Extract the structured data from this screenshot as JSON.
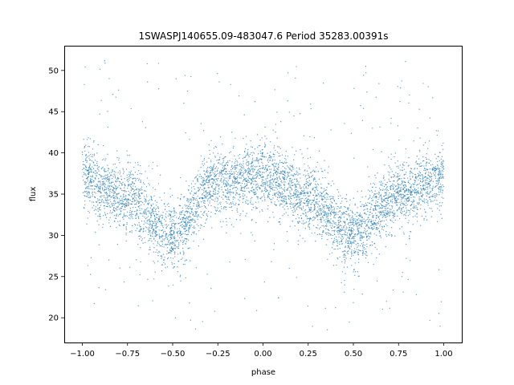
{
  "chart_data": {
    "type": "scatter",
    "title": "1SWASPJ140655.09-483047.6 Period 35283.00391s",
    "xlabel": "phase",
    "ylabel": "flux",
    "xlim": [
      -1.1,
      1.1
    ],
    "ylim": [
      17,
      53
    ],
    "xticks": [
      -1.0,
      -0.75,
      -0.5,
      -0.25,
      0.0,
      0.25,
      0.5,
      0.75,
      1.0
    ],
    "xtick_labels": [
      "−1.00",
      "−0.75",
      "−0.50",
      "−0.25",
      "0.00",
      "0.25",
      "0.50",
      "0.75",
      "1.00"
    ],
    "yticks": [
      20,
      25,
      30,
      35,
      40,
      45,
      50
    ],
    "ytick_labels": [
      "20",
      "25",
      "30",
      "35",
      "40",
      "45",
      "50"
    ],
    "grid": false,
    "marker_color": "#1f77b4",
    "x_range": [
      -1.0,
      1.0
    ],
    "trend_x": [
      -1.0,
      -0.75,
      -0.5,
      -0.25,
      0.0,
      0.25,
      0.5,
      0.75,
      1.0
    ],
    "trend_y": [
      37.0,
      34.5,
      30.0,
      36.5,
      37.3,
      34.5,
      30.0,
      35.0,
      37.0
    ],
    "approx_scatter_sd": 2.0,
    "outlier_range": [
      18.5,
      51.5
    ]
  }
}
